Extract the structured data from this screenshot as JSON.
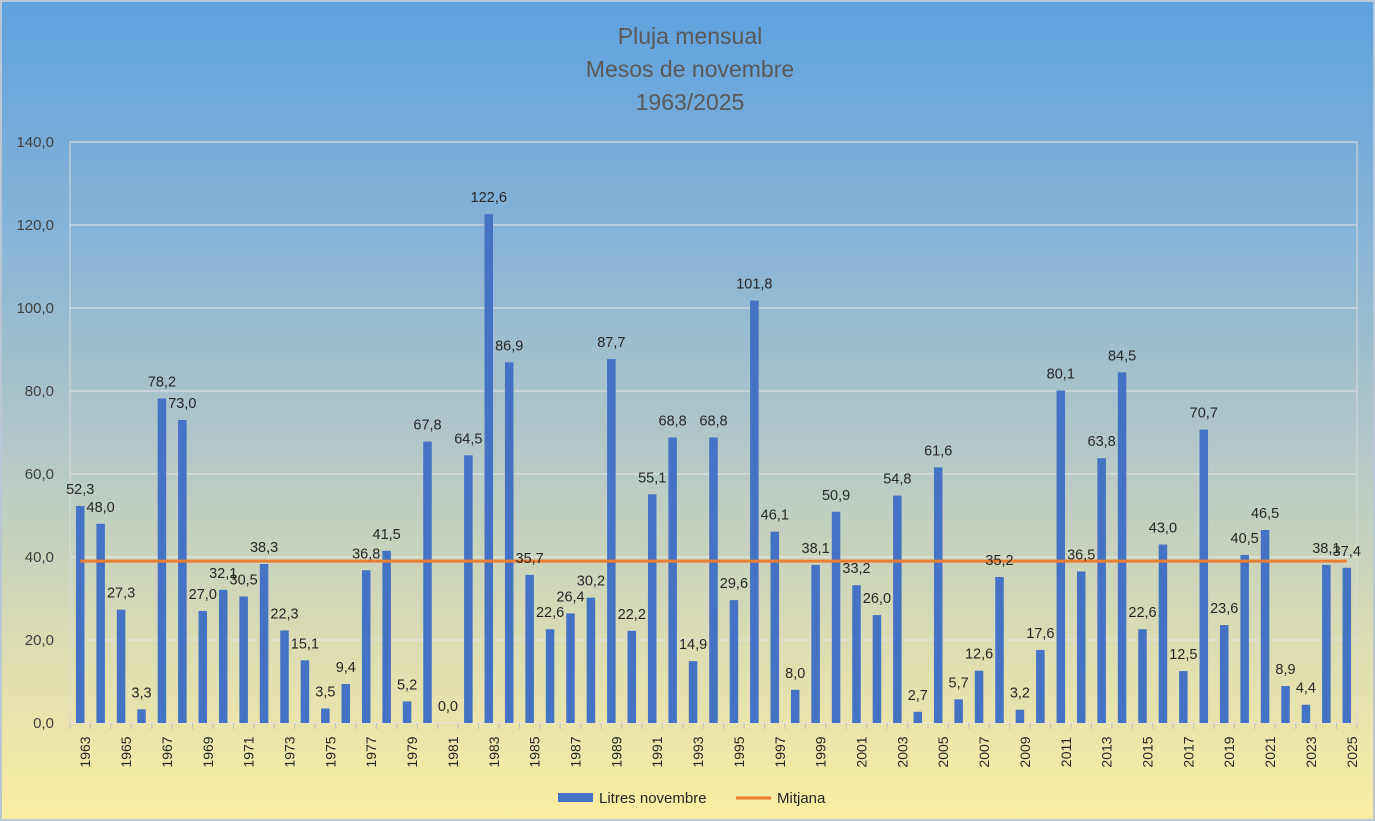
{
  "chart_data": {
    "type": "bar",
    "title": [
      "Pluja mensual",
      "Mesos de novembre",
      "1963/2025"
    ],
    "xlabel": "",
    "ylabel": "",
    "ylim": [
      0,
      140
    ],
    "yticks": [
      "0,0",
      "20,0",
      "40,0",
      "60,0",
      "80,0",
      "100,0",
      "120,0",
      "140,0"
    ],
    "grid": true,
    "legend_position": "bottom",
    "categories": [
      "1963",
      "1964",
      "1965",
      "1966",
      "1967",
      "1968",
      "1969",
      "1970",
      "1971",
      "1972",
      "1973",
      "1974",
      "1975",
      "1976",
      "1977",
      "1978",
      "1979",
      "1980",
      "1981",
      "1982",
      "1983",
      "1984",
      "1985",
      "1986",
      "1987",
      "1988",
      "1989",
      "1990",
      "1991",
      "1992",
      "1993",
      "1994",
      "1995",
      "1996",
      "1997",
      "1998",
      "1999",
      "2000",
      "2001",
      "2002",
      "2003",
      "2004",
      "2005",
      "2006",
      "2007",
      "2008",
      "2009",
      "2010",
      "2011",
      "2012",
      "2013",
      "2014",
      "2015",
      "2016",
      "2017",
      "2018",
      "2019",
      "2020",
      "2021",
      "2022",
      "2023",
      "2024",
      "2025"
    ],
    "series": [
      {
        "name": "Litres novembre",
        "type": "bar",
        "color": "#4472c4",
        "values": [
          52.3,
          48.0,
          27.3,
          3.3,
          78.2,
          73.0,
          27.0,
          32.1,
          30.5,
          38.3,
          22.3,
          15.1,
          3.5,
          9.4,
          36.8,
          41.5,
          5.2,
          67.8,
          0.0,
          64.5,
          122.6,
          86.9,
          35.7,
          22.6,
          26.4,
          30.2,
          87.7,
          22.2,
          55.1,
          68.8,
          14.9,
          68.8,
          29.6,
          101.8,
          46.1,
          8.0,
          38.1,
          50.9,
          33.2,
          26.0,
          54.8,
          2.7,
          61.6,
          5.7,
          12.6,
          35.2,
          3.2,
          17.6,
          80.1,
          36.5,
          63.8,
          84.5,
          22.6,
          43.0,
          12.5,
          70.7,
          23.6,
          40.5,
          46.5,
          8.9,
          4.4,
          38.1,
          37.4
        ],
        "labels": [
          "52,3",
          "48,0",
          "27,3",
          "3,3",
          "78,2",
          "73,0",
          "27,0",
          "32,1",
          "30,5",
          "38,3",
          "22,3",
          "15,1",
          "3,5",
          "9,4",
          "36,8",
          "41,5",
          "5,2",
          "67,8",
          "0,0",
          "64,5",
          "122,6",
          "86,9",
          "35,7",
          "22,6",
          "26,4",
          "30,2",
          "87,7",
          "22,2",
          "55,1",
          "68,8",
          "14,9",
          "68,8",
          "29,6",
          "101,8",
          "46,1",
          "8,0",
          "38,1",
          "50,9",
          "33,2",
          "26,0",
          "54,8",
          "2,7",
          "61,6",
          "5,7",
          "12,6",
          "35,2",
          "3,2",
          "17,6",
          "80,1",
          "36,5",
          "63,8",
          "84,5",
          "22,6",
          "43,0",
          "12,5",
          "70,7",
          "23,6",
          "40,5",
          "46,5",
          "8,9",
          "4,4",
          "38,1",
          "37,4"
        ]
      },
      {
        "name": "Mitjana",
        "type": "line",
        "color": "#ed7d31",
        "value": 39.0
      }
    ]
  }
}
